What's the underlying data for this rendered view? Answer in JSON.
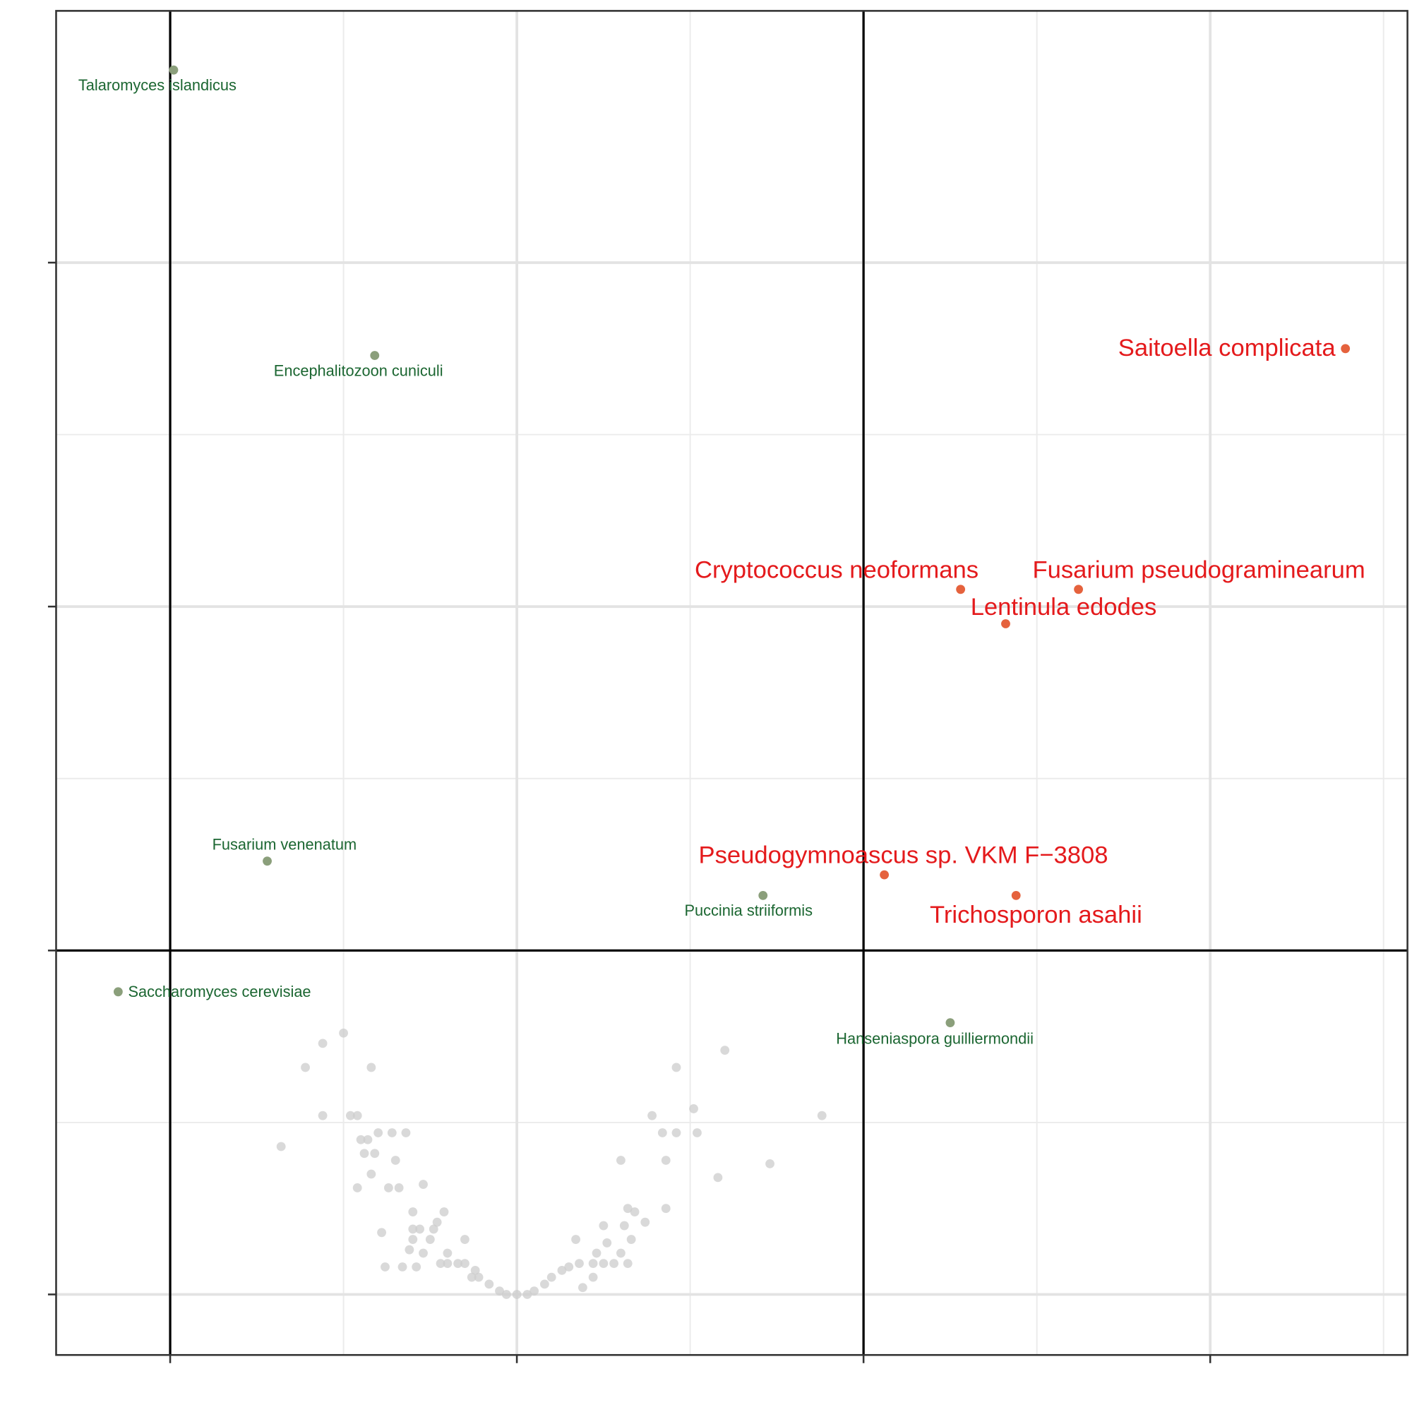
{
  "chart_data": {
    "type": "scatter",
    "xlim": [
      -1.329,
      2.569
    ],
    "ylim": [
      -0.176,
      3.732
    ],
    "xticks": [
      -1,
      0,
      1,
      2
    ],
    "yticks": [
      0,
      1,
      2,
      3
    ],
    "x_minor_grid": [
      -0.5,
      0.5,
      1.5,
      2.5
    ],
    "y_minor_grid": [
      0.5,
      1.5,
      2.5
    ],
    "vlines": [
      -1,
      1
    ],
    "hlines": [
      1
    ],
    "grid": true,
    "series": [
      {
        "color": "#cccccc",
        "x": [
          -0.5,
          -0.56,
          -0.61,
          -0.42,
          -0.56,
          -0.48,
          -0.46,
          -0.68,
          -0.45,
          -0.43,
          -0.4,
          -0.36,
          -0.32,
          -0.44,
          -0.41,
          -0.35,
          -0.42,
          -0.46,
          -0.37,
          -0.34,
          -0.27,
          -0.3,
          -0.21,
          -0.23,
          -0.15,
          -0.39,
          -0.3,
          -0.28,
          -0.24,
          -0.3,
          -0.25,
          -0.31,
          -0.27,
          -0.2,
          -0.38,
          -0.33,
          -0.29,
          -0.22,
          -0.2,
          -0.17,
          -0.15,
          -0.12,
          -0.13,
          -0.11,
          -0.08,
          -0.05,
          -0.03,
          0,
          0.03,
          0.05,
          0.08,
          0.1,
          0.13,
          0.15,
          0.18,
          0.22,
          0.25,
          0.28,
          0.32,
          0.19,
          0.22,
          0.17,
          0.23,
          0.26,
          0.3,
          0.33,
          0.37,
          0.32,
          0.34,
          0.25,
          0.31,
          0.43,
          0.3,
          0.43,
          0.39,
          0.42,
          0.46,
          0.52,
          0.51,
          0.46,
          0.6,
          0.88,
          0.73,
          0.58
        ],
        "values": [
          0.76,
          0.73,
          0.66,
          0.66,
          0.52,
          0.52,
          0.52,
          0.43,
          0.45,
          0.45,
          0.47,
          0.47,
          0.47,
          0.41,
          0.41,
          0.39,
          0.35,
          0.31,
          0.31,
          0.31,
          0.32,
          0.24,
          0.24,
          0.21,
          0.16,
          0.18,
          0.19,
          0.19,
          0.19,
          0.16,
          0.16,
          0.13,
          0.12,
          0.12,
          0.08,
          0.08,
          0.08,
          0.09,
          0.09,
          0.09,
          0.09,
          0.07,
          0.05,
          0.05,
          0.03,
          0.01,
          0,
          0,
          0,
          0.01,
          0.03,
          0.05,
          0.07,
          0.08,
          0.09,
          0.09,
          0.09,
          0.09,
          0.09,
          0.02,
          0.05,
          0.16,
          0.12,
          0.15,
          0.12,
          0.16,
          0.21,
          0.25,
          0.24,
          0.2,
          0.2,
          0.25,
          0.39,
          0.39,
          0.52,
          0.47,
          0.47,
          0.47,
          0.54,
          0.66,
          0.71,
          0.52,
          0.38,
          0.34
        ]
      },
      {
        "color": "#8b9f7b",
        "label_color": "#1b6631",
        "label_size": 17,
        "x": [
          -0.99,
          -0.41,
          -0.72,
          0.71,
          -1.15,
          1.25
        ],
        "values": [
          3.56,
          2.73,
          1.26,
          1.16,
          0.88,
          0.79
        ],
        "labels": [
          "Talaromyces islandicus",
          "Encephalitozoon cuniculi",
          "Fusarium venenatum",
          "Puccinia striiformis",
          "Saccharomyces cerevisiae",
          "Hanseniaspora guilliermondii"
        ]
      },
      {
        "color": "#e5623d",
        "label_color": "#e41a1c",
        "label_size": 27,
        "x": [
          2.39,
          1.28,
          1.62,
          1.41,
          1.06,
          1.44
        ],
        "values": [
          2.75,
          2.05,
          2.05,
          1.95,
          1.22,
          1.16
        ],
        "labels": [
          "Saitoella complicata",
          "Cryptococcus neoformans",
          "Fusarium pseudograminearum",
          "Lentinula edodes",
          "Pseudogymnoascus sp. VKM F−3808",
          "Trichosporon asahii"
        ]
      }
    ]
  }
}
